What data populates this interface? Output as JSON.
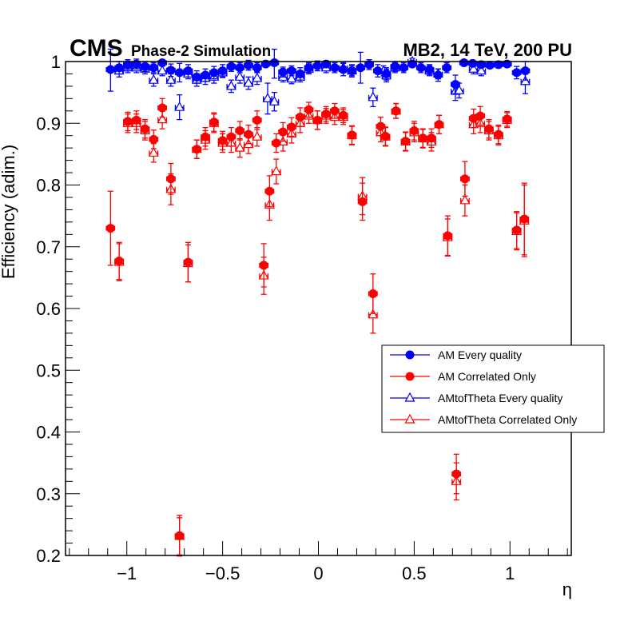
{
  "chart_data": {
    "type": "scatter",
    "title_left_main": "CMS",
    "title_left_sub": "Phase-2 Simulation",
    "title_right": "MB2, 14 TeV, 200 PU",
    "xlabel": "η",
    "ylabel": "Efficiency (adim.)",
    "xlim": [
      -1.32,
      1.32
    ],
    "ylim": [
      0.2,
      1.0
    ],
    "x_ticks": [
      -1,
      -0.5,
      0,
      0.5,
      1
    ],
    "x_tick_labels": [
      "−1",
      "−0.5",
      "0",
      "0.5",
      "1"
    ],
    "y_ticks": [
      0.2,
      0.3,
      0.4,
      0.5,
      0.6,
      0.7,
      0.8,
      0.9,
      1.0
    ],
    "y_tick_labels": [
      "0.2",
      "0.3",
      "0.4",
      "0.5",
      "0.6",
      "0.7",
      "0.8",
      "0.9",
      "1"
    ],
    "grid": false,
    "legend_position": "right-middle",
    "bin_half_width": 0.022,
    "series": [
      {
        "name": "AM Every quality",
        "color": "#0000ff",
        "marker": "filled-circle",
        "points": [
          [
            -1.085,
            0.987,
            0.035
          ],
          [
            -1.04,
            0.99,
            0.01
          ],
          [
            -0.995,
            0.995,
            0.008
          ],
          [
            -0.95,
            0.996,
            0.008
          ],
          [
            -0.905,
            0.992,
            0.008
          ],
          [
            -0.86,
            0.99,
            0.008
          ],
          [
            -0.815,
            0.998,
            0.005
          ],
          [
            -0.77,
            0.986,
            0.01
          ],
          [
            -0.725,
            0.982,
            0.015
          ],
          [
            -0.68,
            0.985,
            0.01
          ],
          [
            -0.635,
            0.975,
            0.01
          ],
          [
            -0.59,
            0.978,
            0.01
          ],
          [
            -0.545,
            0.982,
            0.01
          ],
          [
            -0.5,
            0.985,
            0.01
          ],
          [
            -0.455,
            0.992,
            0.008
          ],
          [
            -0.41,
            0.99,
            0.008
          ],
          [
            -0.365,
            0.994,
            0.008
          ],
          [
            -0.32,
            0.99,
            0.008
          ],
          [
            -0.275,
            0.996,
            0.005
          ],
          [
            -0.23,
            0.998,
            0.025
          ],
          [
            -0.185,
            0.983,
            0.008
          ],
          [
            -0.14,
            0.985,
            0.008
          ],
          [
            -0.095,
            0.98,
            0.01
          ],
          [
            -0.05,
            0.99,
            0.008
          ],
          [
            -0.005,
            0.993,
            0.008
          ],
          [
            0.04,
            0.996,
            0.005
          ],
          [
            0.085,
            0.99,
            0.008
          ],
          [
            0.13,
            0.987,
            0.01
          ],
          [
            0.175,
            0.985,
            0.01
          ],
          [
            0.22,
            0.99,
            0.025
          ],
          [
            0.265,
            0.995,
            0.008
          ],
          [
            0.31,
            0.985,
            0.01
          ],
          [
            0.355,
            0.98,
            0.01
          ],
          [
            0.4,
            0.992,
            0.008
          ],
          [
            0.445,
            0.99,
            0.008
          ],
          [
            0.49,
            0.996,
            0.005
          ],
          [
            0.535,
            0.99,
            0.008
          ],
          [
            0.58,
            0.987,
            0.008
          ],
          [
            0.625,
            0.978,
            0.01
          ],
          [
            0.67,
            0.99,
            0.008
          ],
          [
            0.715,
            0.963,
            0.015
          ],
          [
            0.76,
            0.998,
            0.005
          ],
          [
            0.805,
            0.997,
            0.005
          ],
          [
            0.85,
            0.995,
            0.005
          ],
          [
            0.895,
            0.994,
            0.005
          ],
          [
            0.94,
            0.995,
            0.005
          ],
          [
            0.985,
            0.996,
            0.005
          ],
          [
            1.035,
            0.982,
            0.01
          ],
          [
            1.08,
            0.985,
            0.015
          ]
        ]
      },
      {
        "name": "AM Correlated Only",
        "color": "#ff0000",
        "marker": "filled-circle",
        "points": [
          [
            -1.085,
            0.73,
            0.06
          ],
          [
            -1.04,
            0.677,
            0.03
          ],
          [
            -0.995,
            0.903,
            0.015
          ],
          [
            -0.95,
            0.905,
            0.015
          ],
          [
            -0.905,
            0.891,
            0.015
          ],
          [
            -0.86,
            0.874,
            0.015
          ],
          [
            -0.815,
            0.925,
            0.015
          ],
          [
            -0.77,
            0.81,
            0.025
          ],
          [
            -0.725,
            0.232,
            0.033
          ],
          [
            -0.68,
            0.675,
            0.032
          ],
          [
            -0.635,
            0.858,
            0.015
          ],
          [
            -0.59,
            0.878,
            0.015
          ],
          [
            -0.545,
            0.902,
            0.015
          ],
          [
            -0.5,
            0.872,
            0.015
          ],
          [
            -0.455,
            0.878,
            0.015
          ],
          [
            -0.41,
            0.888,
            0.015
          ],
          [
            -0.365,
            0.882,
            0.015
          ],
          [
            -0.32,
            0.905,
            0.015
          ],
          [
            -0.285,
            0.67,
            0.035
          ],
          [
            -0.255,
            0.79,
            0.025
          ],
          [
            -0.22,
            0.868,
            0.015
          ],
          [
            -0.185,
            0.886,
            0.015
          ],
          [
            -0.14,
            0.894,
            0.015
          ],
          [
            -0.095,
            0.91,
            0.015
          ],
          [
            -0.05,
            0.922,
            0.012
          ],
          [
            -0.005,
            0.905,
            0.015
          ],
          [
            0.04,
            0.915,
            0.012
          ],
          [
            0.085,
            0.92,
            0.012
          ],
          [
            0.13,
            0.913,
            0.012
          ],
          [
            0.175,
            0.881,
            0.015
          ],
          [
            0.23,
            0.773,
            0.03
          ],
          [
            0.285,
            0.624,
            0.032
          ],
          [
            0.325,
            0.895,
            0.015
          ],
          [
            0.35,
            0.879,
            0.015
          ],
          [
            0.405,
            0.92,
            0.012
          ],
          [
            0.455,
            0.871,
            0.015
          ],
          [
            0.5,
            0.888,
            0.015
          ],
          [
            0.545,
            0.876,
            0.015
          ],
          [
            0.59,
            0.876,
            0.015
          ],
          [
            0.63,
            0.898,
            0.015
          ],
          [
            0.675,
            0.718,
            0.032
          ],
          [
            0.72,
            0.332,
            0.032
          ],
          [
            0.765,
            0.81,
            0.028
          ],
          [
            0.81,
            0.908,
            0.015
          ],
          [
            0.845,
            0.912,
            0.015
          ],
          [
            0.89,
            0.891,
            0.015
          ],
          [
            0.94,
            0.882,
            0.015
          ],
          [
            0.985,
            0.907,
            0.012
          ],
          [
            1.035,
            0.727,
            0.03
          ],
          [
            1.075,
            0.745,
            0.058
          ]
        ]
      },
      {
        "name": "AMtofTheta Every quality",
        "color": "#0000ff",
        "marker": "open-triangle",
        "points": [
          [
            -1.04,
            0.985,
            0.01
          ],
          [
            -0.995,
            0.99,
            0.008
          ],
          [
            -0.95,
            0.99,
            0.008
          ],
          [
            -0.905,
            0.988,
            0.008
          ],
          [
            -0.86,
            0.97,
            0.01
          ],
          [
            -0.815,
            0.985,
            0.008
          ],
          [
            -0.77,
            0.97,
            0.01
          ],
          [
            -0.725,
            0.926,
            0.02
          ],
          [
            -0.68,
            0.98,
            0.008
          ],
          [
            -0.635,
            0.97,
            0.01
          ],
          [
            -0.59,
            0.973,
            0.01
          ],
          [
            -0.545,
            0.975,
            0.01
          ],
          [
            -0.5,
            0.982,
            0.008
          ],
          [
            -0.455,
            0.96,
            0.01
          ],
          [
            -0.41,
            0.975,
            0.01
          ],
          [
            -0.365,
            0.965,
            0.01
          ],
          [
            -0.32,
            0.973,
            0.01
          ],
          [
            -0.265,
            0.94,
            0.025
          ],
          [
            -0.23,
            0.935,
            0.015
          ],
          [
            -0.185,
            0.975,
            0.008
          ],
          [
            -0.14,
            0.972,
            0.008
          ],
          [
            -0.095,
            0.975,
            0.008
          ],
          [
            -0.05,
            0.988,
            0.008
          ],
          [
            0.04,
            0.99,
            0.008
          ],
          [
            0.13,
            0.99,
            0.008
          ],
          [
            0.175,
            0.985,
            0.008
          ],
          [
            0.285,
            0.942,
            0.015
          ],
          [
            0.34,
            0.985,
            0.008
          ],
          [
            0.355,
            0.977,
            0.01
          ],
          [
            0.4,
            0.99,
            0.008
          ],
          [
            0.49,
            1.0,
            0.005
          ],
          [
            0.58,
            0.985,
            0.008
          ],
          [
            0.625,
            0.98,
            0.008
          ],
          [
            0.715,
            0.952,
            0.015
          ],
          [
            0.735,
            0.953,
            0.012
          ],
          [
            0.81,
            0.988,
            0.008
          ],
          [
            0.85,
            0.985,
            0.008
          ],
          [
            1.08,
            0.968,
            0.02
          ]
        ]
      },
      {
        "name": "AMtofTheta Correlated Only",
        "color": "#ff0000",
        "marker": "open-triangle",
        "points": [
          [
            -1.04,
            0.675,
            0.03
          ],
          [
            -0.995,
            0.9,
            0.015
          ],
          [
            -0.95,
            0.9,
            0.015
          ],
          [
            -0.905,
            0.888,
            0.015
          ],
          [
            -0.86,
            0.852,
            0.015
          ],
          [
            -0.815,
            0.906,
            0.015
          ],
          [
            -0.77,
            0.793,
            0.025
          ],
          [
            -0.725,
            0.231,
            0.03
          ],
          [
            -0.68,
            0.673,
            0.03
          ],
          [
            -0.635,
            0.858,
            0.015
          ],
          [
            -0.59,
            0.873,
            0.015
          ],
          [
            -0.545,
            0.9,
            0.015
          ],
          [
            -0.5,
            0.868,
            0.015
          ],
          [
            -0.455,
            0.868,
            0.015
          ],
          [
            -0.41,
            0.86,
            0.015
          ],
          [
            -0.365,
            0.866,
            0.015
          ],
          [
            -0.32,
            0.878,
            0.015
          ],
          [
            -0.285,
            0.653,
            0.03
          ],
          [
            -0.255,
            0.768,
            0.025
          ],
          [
            -0.22,
            0.822,
            0.02
          ],
          [
            -0.185,
            0.87,
            0.015
          ],
          [
            -0.14,
            0.883,
            0.015
          ],
          [
            -0.095,
            0.9,
            0.015
          ],
          [
            -0.05,
            0.912,
            0.012
          ],
          [
            -0.005,
            0.905,
            0.015
          ],
          [
            0.04,
            0.912,
            0.012
          ],
          [
            0.085,
            0.91,
            0.012
          ],
          [
            0.13,
            0.91,
            0.012
          ],
          [
            0.175,
            0.88,
            0.015
          ],
          [
            0.23,
            0.782,
            0.03
          ],
          [
            0.285,
            0.59,
            0.03
          ],
          [
            0.325,
            0.885,
            0.015
          ],
          [
            0.35,
            0.878,
            0.015
          ],
          [
            0.405,
            0.92,
            0.012
          ],
          [
            0.455,
            0.87,
            0.015
          ],
          [
            0.5,
            0.885,
            0.015
          ],
          [
            0.545,
            0.875,
            0.015
          ],
          [
            0.59,
            0.87,
            0.015
          ],
          [
            0.63,
            0.898,
            0.015
          ],
          [
            0.675,
            0.715,
            0.03
          ],
          [
            0.72,
            0.32,
            0.03
          ],
          [
            0.765,
            0.775,
            0.025
          ],
          [
            0.81,
            0.898,
            0.015
          ],
          [
            0.845,
            0.9,
            0.015
          ],
          [
            0.89,
            0.888,
            0.015
          ],
          [
            0.94,
            0.88,
            0.015
          ],
          [
            0.985,
            0.905,
            0.012
          ],
          [
            1.035,
            0.725,
            0.03
          ],
          [
            1.075,
            0.742,
            0.058
          ]
        ]
      }
    ]
  }
}
